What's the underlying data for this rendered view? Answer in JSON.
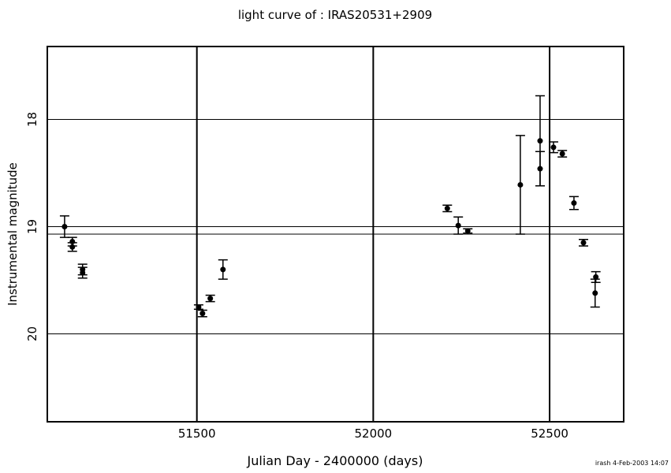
{
  "chart_data": {
    "type": "errorbar-scatter",
    "title": "light curve of : IRAS20531+2909",
    "x_label": "Julian Day - 2400000 (days)",
    "y_label": "Instrumental magnitude",
    "footer": "irash  4-Feb-2003 14:07",
    "x": [
      51125,
      51147,
      51147,
      51176,
      51176,
      51505,
      51516,
      51538,
      51574,
      52210,
      52241,
      52268,
      52417,
      52473,
      52473,
      52511,
      52536,
      52569,
      52596,
      52629,
      52631
    ],
    "values": [
      19.0,
      19.14,
      19.19,
      19.4,
      19.43,
      19.75,
      19.81,
      19.67,
      19.4,
      18.83,
      18.99,
      19.04,
      18.61,
      18.2,
      18.46,
      18.26,
      18.32,
      18.78,
      19.15,
      19.62,
      19.47
    ],
    "errors": [
      0.1,
      0.04,
      0.04,
      0.05,
      0.05,
      0.02,
      0.03,
      0.03,
      0.09,
      0.03,
      0.08,
      0.02,
      0.46,
      0.42,
      0.16,
      0.05,
      0.03,
      0.06,
      0.03,
      0.13,
      0.05
    ],
    "color": "#000000",
    "xlim": [
      51076,
      52710
    ],
    "ylim": [
      20.82,
      17.32
    ],
    "xticks": [
      51500,
      52000,
      52500
    ],
    "yticks": [
      18,
      19,
      20
    ],
    "grid": true,
    "hline": 19.07
  }
}
